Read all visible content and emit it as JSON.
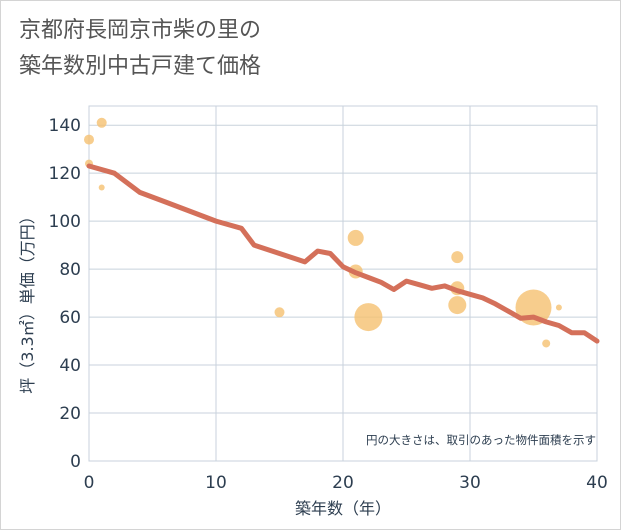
{
  "title_line1": "京都府長岡京市柴の里の",
  "title_line2": "築年数別中古戸建て価格",
  "chart_data": {
    "type": "scatter",
    "xlabel": "築年数（年）",
    "ylabel": "坪（3.3㎡）単価（万円）",
    "xlim": [
      0,
      40
    ],
    "ylim": [
      0,
      148
    ],
    "xticks": [
      0,
      10,
      20,
      30,
      40
    ],
    "yticks": [
      0,
      20,
      40,
      60,
      80,
      100,
      120,
      140
    ],
    "grid": true,
    "note": "円の大きさは、取引のあった物件面積を示す",
    "colors": {
      "bubble": "#f5c071",
      "line": "#d4705a",
      "grid": "#c8d2dc",
      "text": "#2d3e50"
    },
    "bubbles": [
      {
        "x": 0,
        "y": 134,
        "size": 5
      },
      {
        "x": 0,
        "y": 124,
        "size": 4
      },
      {
        "x": 1,
        "y": 141,
        "size": 5
      },
      {
        "x": 1,
        "y": 114,
        "size": 3
      },
      {
        "x": 15,
        "y": 62,
        "size": 5
      },
      {
        "x": 21,
        "y": 93,
        "size": 8
      },
      {
        "x": 21,
        "y": 79,
        "size": 7
      },
      {
        "x": 22,
        "y": 60,
        "size": 14
      },
      {
        "x": 29,
        "y": 85,
        "size": 6
      },
      {
        "x": 29,
        "y": 72,
        "size": 7
      },
      {
        "x": 29,
        "y": 65,
        "size": 9
      },
      {
        "x": 35,
        "y": 64,
        "size": 18
      },
      {
        "x": 36,
        "y": 49,
        "size": 4
      },
      {
        "x": 37,
        "y": 64,
        "size": 3
      }
    ],
    "trend": {
      "x": [
        0,
        2,
        4,
        6,
        8,
        10,
        12,
        13,
        15,
        17,
        18,
        19,
        20,
        21,
        22,
        23,
        24,
        25,
        26,
        27,
        28,
        29,
        30,
        31,
        32,
        33,
        34,
        35,
        36,
        37,
        38,
        39,
        40
      ],
      "y": [
        123,
        120,
        112,
        108,
        104,
        100,
        97,
        90,
        86.5,
        83,
        87.5,
        86.5,
        81,
        78.5,
        76.5,
        74.5,
        71.5,
        75,
        73.5,
        72,
        73,
        71,
        69.5,
        68,
        65.5,
        62.5,
        59.5,
        60,
        58,
        56.5,
        53.5,
        53.5,
        50
      ]
    }
  }
}
